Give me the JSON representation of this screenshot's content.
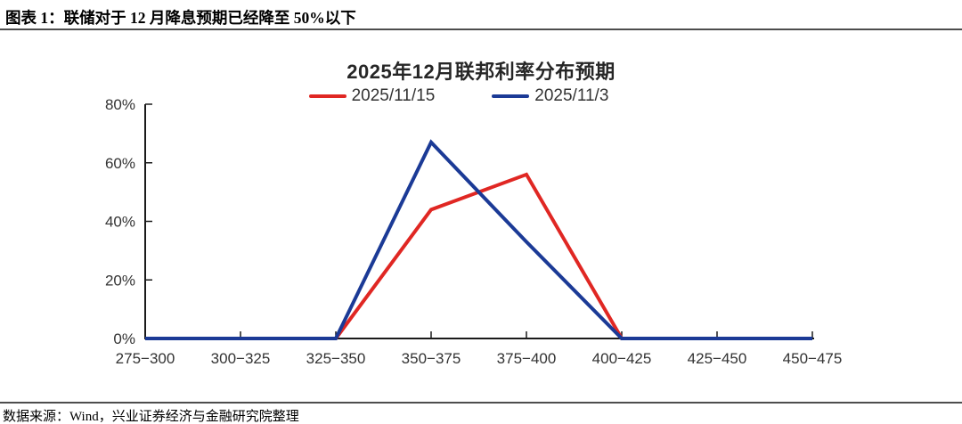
{
  "header": {
    "title": "图表 1：联储对于 12 月降息预期已经降至 50%以下"
  },
  "chart_data": {
    "type": "line",
    "title": "2025年12月联邦利率分布预期",
    "categories": [
      "275−300",
      "300−325",
      "325−350",
      "350−375",
      "375−400",
      "400−425",
      "425−450",
      "450−475"
    ],
    "series": [
      {
        "name": "2025/11/15",
        "color": "#e02723",
        "values": [
          0,
          0,
          0,
          44,
          56,
          0,
          0,
          0
        ]
      },
      {
        "name": "2025/11/3",
        "color": "#1b3a96",
        "values": [
          0,
          0,
          0,
          67,
          33,
          0,
          0,
          0
        ]
      }
    ],
    "xlabel": "",
    "ylabel": "",
    "ylim": [
      0,
      80
    ],
    "yticks": [
      0,
      20,
      40,
      60,
      80
    ],
    "ytick_suffix": "%",
    "legend_position": "top",
    "grid": false,
    "axis_color": "#1a1a1a"
  },
  "footer": {
    "source": "数据来源：Wind，兴业证券经济与金融研究院整理"
  }
}
